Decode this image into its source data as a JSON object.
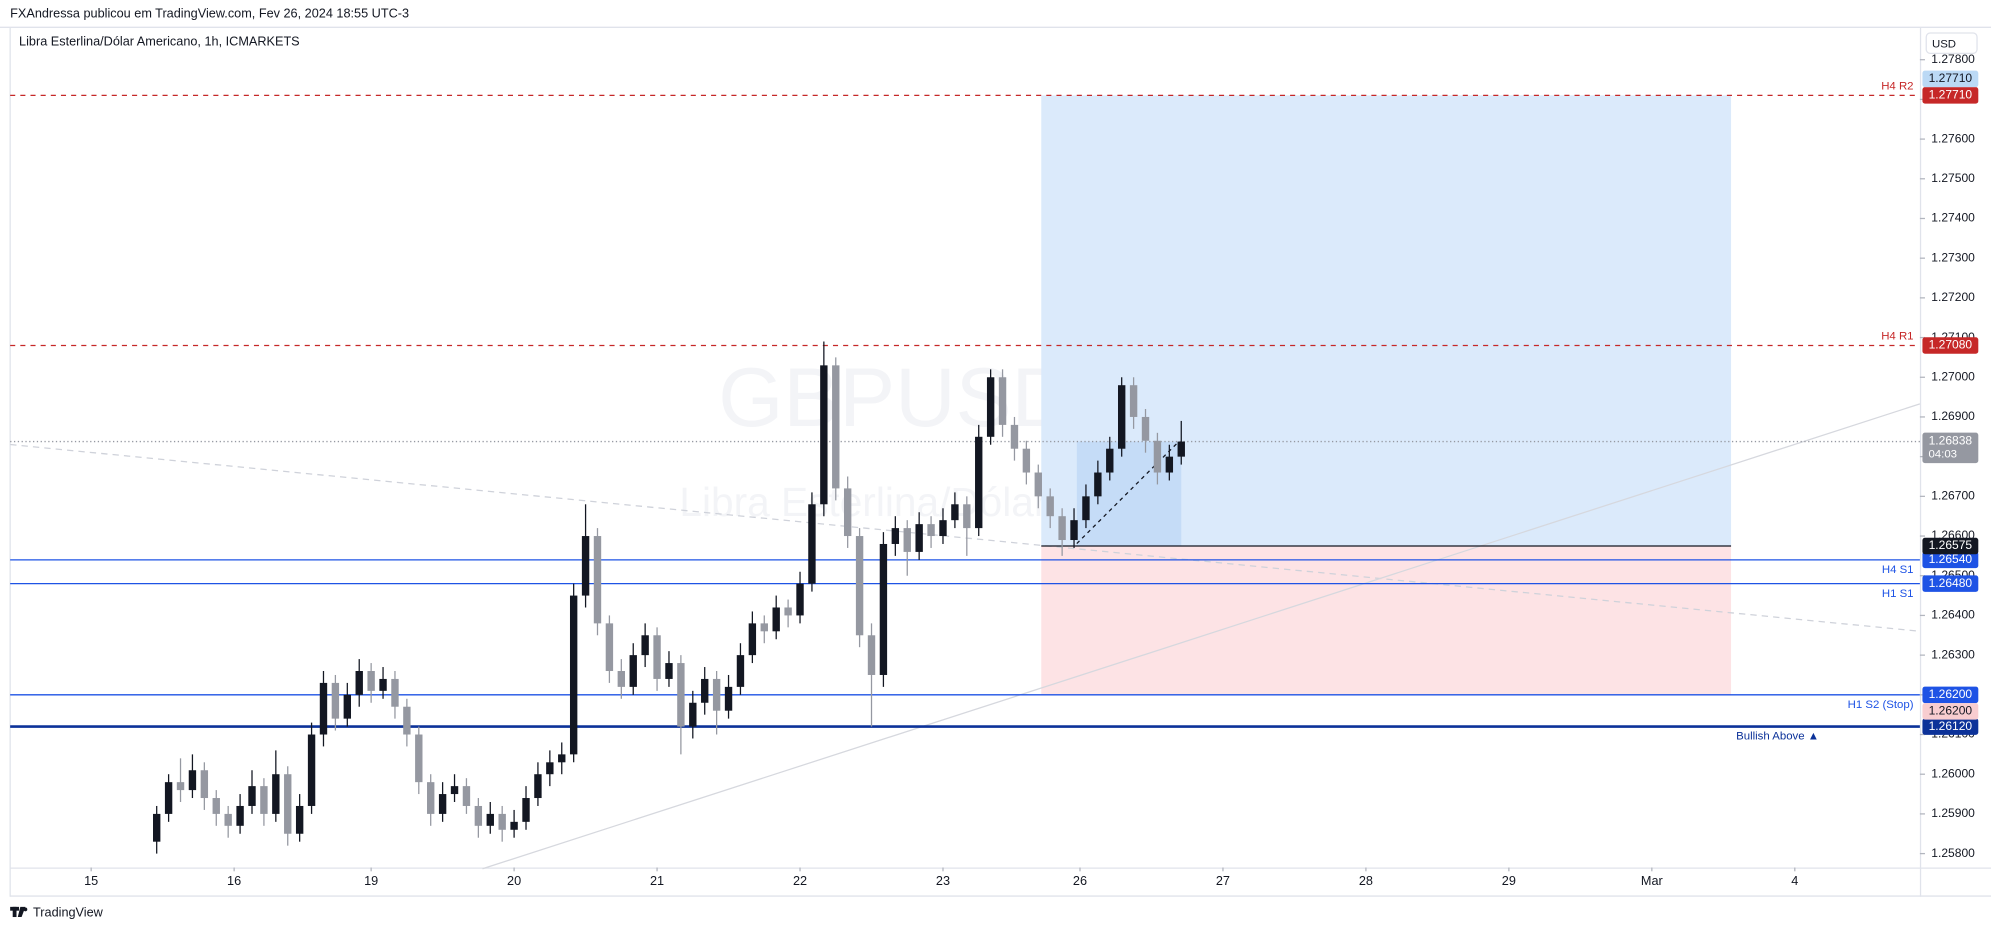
{
  "chart_data": {
    "type": "candlestick",
    "header": "FXAndressa publicou em TradingView.com, Fev 26, 2024 18:55 UTC-3",
    "title": "Libra Esterlina/Dólar Americano, 1h, ICMARKETS",
    "watermark": "GBPUSD, 1h",
    "watermark_subtitle": "Libra Esterlina/Dólar Americano",
    "currency": "USD",
    "brand": "TradingView",
    "up_color": "#131722",
    "down_color": "#9598a1",
    "xlim": [
      -13.6,
      307
    ],
    "ylim": [
      1.25765,
      1.2788
    ],
    "xticks": [
      {
        "value": 0,
        "label": "15"
      },
      {
        "value": 24,
        "label": "16"
      },
      {
        "value": 47,
        "label": "19"
      },
      {
        "value": 71,
        "label": "20"
      },
      {
        "value": 95,
        "label": "21"
      },
      {
        "value": 119,
        "label": "22"
      },
      {
        "value": 143,
        "label": "23"
      },
      {
        "value": 166,
        "label": "26"
      },
      {
        "value": 190,
        "label": "27"
      },
      {
        "value": 214,
        "label": "28"
      },
      {
        "value": 238,
        "label": "29"
      },
      {
        "value": 262,
        "label": "Mar"
      },
      {
        "value": 286,
        "label": "4"
      }
    ],
    "yticks": [
      {
        "value": 1.258,
        "label": "1.25800"
      },
      {
        "value": 1.259,
        "label": "1.25900"
      },
      {
        "value": 1.26,
        "label": "1.26000"
      },
      {
        "value": 1.261,
        "label": "1.26100"
      },
      {
        "value": 1.262,
        "label": "1.26200"
      },
      {
        "value": 1.263,
        "label": "1.26300"
      },
      {
        "value": 1.264,
        "label": "1.26400"
      },
      {
        "value": 1.265,
        "label": "1.26500"
      },
      {
        "value": 1.266,
        "label": "1.26600"
      },
      {
        "value": 1.267,
        "label": "1.26700"
      },
      {
        "value": 1.268,
        "label": "1.26800"
      },
      {
        "value": 1.269,
        "label": "1.26900"
      },
      {
        "value": 1.27,
        "label": "1.27000"
      },
      {
        "value": 1.271,
        "label": "1.27100"
      },
      {
        "value": 1.272,
        "label": "1.27200"
      },
      {
        "value": 1.273,
        "label": "1.27300"
      },
      {
        "value": 1.274,
        "label": "1.27400"
      },
      {
        "value": 1.275,
        "label": "1.27500"
      },
      {
        "value": 1.276,
        "label": "1.27600"
      },
      {
        "value": 1.277,
        "label": "1.27700"
      },
      {
        "value": 1.278,
        "label": "1.27800"
      }
    ],
    "x": [
      11,
      13,
      15,
      17,
      19,
      21,
      23,
      25,
      27,
      29,
      31,
      33,
      35,
      37,
      39,
      41,
      43,
      45,
      47,
      49,
      51,
      53,
      55,
      57,
      59,
      61,
      63,
      65,
      67,
      69,
      71,
      73,
      75,
      77,
      79,
      81,
      83,
      85,
      87,
      89,
      91,
      93,
      95,
      97,
      99,
      101,
      103,
      105,
      107,
      109,
      111,
      113,
      115,
      117,
      119,
      121,
      123,
      125,
      127,
      129,
      131,
      133,
      135,
      137,
      139,
      141,
      143,
      145,
      147,
      149,
      151,
      153,
      155,
      157,
      159,
      161,
      163,
      165,
      167,
      169,
      171,
      173,
      175,
      177,
      179,
      181,
      183
    ],
    "ohlc": [
      [
        1.2583,
        1.2592,
        1.258,
        1.259
      ],
      [
        1.259,
        1.26,
        1.2588,
        1.2598
      ],
      [
        1.2598,
        1.2604,
        1.2593,
        1.2596
      ],
      [
        1.2596,
        1.2605,
        1.2594,
        1.2601
      ],
      [
        1.2601,
        1.2603,
        1.2591,
        1.2594
      ],
      [
        1.2594,
        1.2596,
        1.2587,
        1.259
      ],
      [
        1.259,
        1.2592,
        1.2584,
        1.2587
      ],
      [
        1.2587,
        1.2595,
        1.2585,
        1.2592
      ],
      [
        1.2592,
        1.2601,
        1.259,
        1.2597
      ],
      [
        1.2597,
        1.2599,
        1.2587,
        1.259
      ],
      [
        1.259,
        1.2606,
        1.2588,
        1.26
      ],
      [
        1.26,
        1.2602,
        1.2582,
        1.2585
      ],
      [
        1.2585,
        1.2595,
        1.2583,
        1.2592
      ],
      [
        1.2592,
        1.2613,
        1.259,
        1.261
      ],
      [
        1.261,
        1.2626,
        1.2607,
        1.2623
      ],
      [
        1.2623,
        1.2625,
        1.2611,
        1.2614
      ],
      [
        1.2614,
        1.2623,
        1.2612,
        1.262
      ],
      [
        1.262,
        1.2629,
        1.2617,
        1.2626
      ],
      [
        1.2626,
        1.2628,
        1.2618,
        1.2621
      ],
      [
        1.2621,
        1.2627,
        1.2619,
        1.2624
      ],
      [
        1.2624,
        1.2626,
        1.2614,
        1.2617
      ],
      [
        1.2617,
        1.2619,
        1.2607,
        1.261
      ],
      [
        1.261,
        1.2612,
        1.2595,
        1.2598
      ],
      [
        1.2598,
        1.26,
        1.2587,
        1.259
      ],
      [
        1.259,
        1.2598,
        1.2588,
        1.2595
      ],
      [
        1.2595,
        1.26,
        1.2593,
        1.2597
      ],
      [
        1.2597,
        1.2599,
        1.259,
        1.2592
      ],
      [
        1.2592,
        1.2594,
        1.2584,
        1.2587
      ],
      [
        1.2587,
        1.2593,
        1.2585,
        1.259
      ],
      [
        1.259,
        1.2592,
        1.2583,
        1.2586
      ],
      [
        1.2586,
        1.2591,
        1.2584,
        1.2588
      ],
      [
        1.2588,
        1.2597,
        1.2586,
        1.2594
      ],
      [
        1.2594,
        1.2603,
        1.2592,
        1.26
      ],
      [
        1.26,
        1.2606,
        1.2597,
        1.2603
      ],
      [
        1.2603,
        1.2608,
        1.26,
        1.2605
      ],
      [
        1.2605,
        1.2648,
        1.2603,
        1.2645
      ],
      [
        1.2645,
        1.2668,
        1.2642,
        1.266
      ],
      [
        1.266,
        1.2662,
        1.2635,
        1.2638
      ],
      [
        1.2638,
        1.264,
        1.2623,
        1.2626
      ],
      [
        1.2626,
        1.2629,
        1.2619,
        1.2622
      ],
      [
        1.2622,
        1.2633,
        1.262,
        1.263
      ],
      [
        1.263,
        1.2638,
        1.2627,
        1.2635
      ],
      [
        1.2635,
        1.2637,
        1.2621,
        1.2624
      ],
      [
        1.2624,
        1.2631,
        1.2622,
        1.2628
      ],
      [
        1.2628,
        1.263,
        1.2605,
        1.2612
      ],
      [
        1.2612,
        1.2621,
        1.2609,
        1.2618
      ],
      [
        1.2618,
        1.2627,
        1.2615,
        1.2624
      ],
      [
        1.2624,
        1.2626,
        1.261,
        1.2616
      ],
      [
        1.2616,
        1.2625,
        1.2614,
        1.2622
      ],
      [
        1.2622,
        1.2633,
        1.262,
        1.263
      ],
      [
        1.263,
        1.2641,
        1.2628,
        1.2638
      ],
      [
        1.2638,
        1.264,
        1.2633,
        1.2636
      ],
      [
        1.2636,
        1.2645,
        1.2634,
        1.2642
      ],
      [
        1.2642,
        1.2644,
        1.2637,
        1.264
      ],
      [
        1.264,
        1.2651,
        1.2638,
        1.2648
      ],
      [
        1.2648,
        1.2671,
        1.2646,
        1.2668
      ],
      [
        1.2668,
        1.2709,
        1.2665,
        1.2703
      ],
      [
        1.2703,
        1.2705,
        1.2669,
        1.2672
      ],
      [
        1.2672,
        1.2675,
        1.2657,
        1.266
      ],
      [
        1.266,
        1.2662,
        1.2632,
        1.2635
      ],
      [
        1.2635,
        1.2638,
        1.2612,
        1.2625
      ],
      [
        1.2625,
        1.2661,
        1.2622,
        1.2658
      ],
      [
        1.2658,
        1.2665,
        1.2655,
        1.2662
      ],
      [
        1.2662,
        1.2664,
        1.265,
        1.2656
      ],
      [
        1.2656,
        1.2666,
        1.2654,
        1.2663
      ],
      [
        1.2663,
        1.2665,
        1.2657,
        1.266
      ],
      [
        1.266,
        1.2667,
        1.2658,
        1.2664
      ],
      [
        1.2664,
        1.2671,
        1.2662,
        1.2668
      ],
      [
        1.2668,
        1.267,
        1.2655,
        1.2662
      ],
      [
        1.2662,
        1.2688,
        1.266,
        1.2685
      ],
      [
        1.2685,
        1.2702,
        1.2683,
        1.27
      ],
      [
        1.27,
        1.2702,
        1.2685,
        1.2688
      ],
      [
        1.2688,
        1.269,
        1.2679,
        1.2682
      ],
      [
        1.2682,
        1.2684,
        1.2673,
        1.2676
      ],
      [
        1.2676,
        1.2678,
        1.2667,
        1.267
      ],
      [
        1.267,
        1.2672,
        1.2662,
        1.2665
      ],
      [
        1.2665,
        1.2667,
        1.2655,
        1.2659
      ],
      [
        1.2659,
        1.2667,
        1.2657,
        1.2664
      ],
      [
        1.2664,
        1.2673,
        1.2662,
        1.267
      ],
      [
        1.267,
        1.2679,
        1.2668,
        1.2676
      ],
      [
        1.2676,
        1.2685,
        1.2674,
        1.2682
      ],
      [
        1.2682,
        1.27,
        1.268,
        1.2698
      ],
      [
        1.2698,
        1.27,
        1.2687,
        1.269
      ],
      [
        1.269,
        1.2692,
        1.2681,
        1.2684
      ],
      [
        1.2684,
        1.2686,
        1.2673,
        1.2676
      ],
      [
        1.2676,
        1.2683,
        1.2674,
        1.268
      ],
      [
        1.268,
        1.2689,
        1.2678,
        1.26838
      ]
    ],
    "levels": [
      {
        "name": "H4 R2",
        "value": 1.2771,
        "price_label": "1.27710",
        "color": "#c62828",
        "style": "dashed"
      },
      {
        "name": "H4 R1",
        "value": 1.2708,
        "price_label": "1.27080",
        "color": "#c62828",
        "style": "dashed"
      },
      {
        "name": "H4 S1",
        "value": 1.2654,
        "price_label": "1.26540",
        "color": "#1e53e5",
        "style": "solid"
      },
      {
        "name": "H1 S1",
        "value": 1.2648,
        "price_label": "1.26480",
        "color": "#1e53e5",
        "style": "solid"
      },
      {
        "name": "H1 S2 (Stop)",
        "value": 1.262,
        "price_label": "1.26200",
        "color": "#1e53e5",
        "style": "solid"
      },
      {
        "name": "Bullish Above ▲",
        "value": 1.2612,
        "price_label": "1.26120",
        "color": "#0c3299",
        "style": "thick"
      }
    ],
    "position": {
      "start": 159.5,
      "end": 275.3,
      "entry": {
        "value": 1.26575,
        "label": "1.26575"
      },
      "target": {
        "value": 1.2771,
        "label": "1.27710"
      },
      "stop": {
        "value": 1.262,
        "label": "1.26200"
      }
    },
    "last_price": {
      "value": 1.26838,
      "label": "1.26838",
      "countdown": "04:03"
    }
  }
}
